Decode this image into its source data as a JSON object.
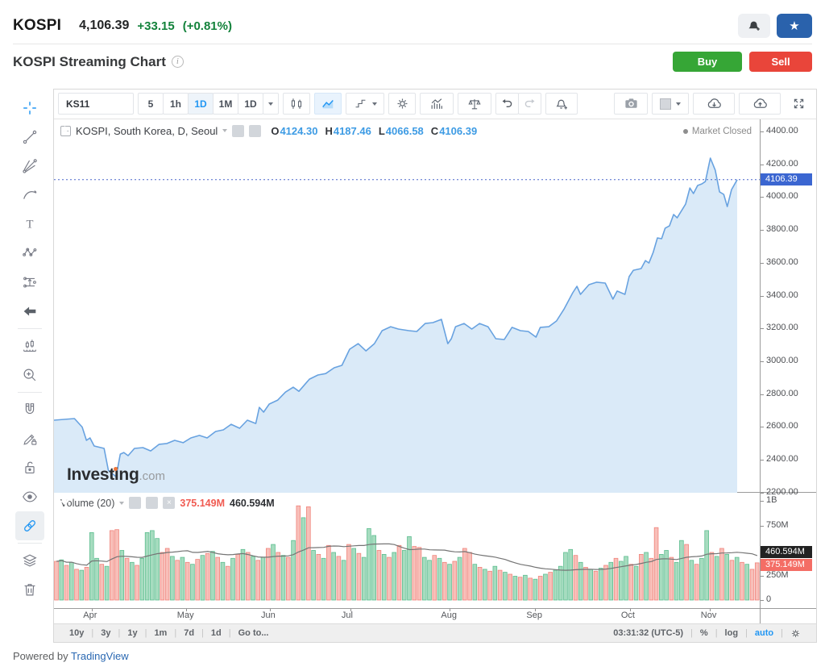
{
  "header": {
    "symbol": "KOSPI",
    "price": "4,106.39",
    "change": "+33.15",
    "change_pct": "(+0.81%)",
    "subtitle": "KOSPI Streaming Chart",
    "buy_label": "Buy",
    "sell_label": "Sell"
  },
  "toolbar": {
    "symbol_input": "KS11",
    "intervals": [
      "5",
      "1h",
      "1D",
      "1M",
      "1D"
    ],
    "active_interval": "1D"
  },
  "legend": {
    "main": "KOSPI, South Korea, D, Seoul",
    "ohlc_labels": {
      "o": "O",
      "h": "H",
      "l": "L",
      "c": "C"
    },
    "ohlc_values": {
      "o": "4124.30",
      "h": "4187.46",
      "l": "4066.58",
      "c": "4106.39"
    },
    "market_status": "Market Closed",
    "volume_label": "Volume (20)",
    "volume_value": "375.149M",
    "volume_ma": "460.594M"
  },
  "watermark": {
    "bold": "Investing",
    "rest": ".com"
  },
  "bottom_bar": {
    "ranges": [
      "10y",
      "3y",
      "1y",
      "1m",
      "7d",
      "1d",
      "Go to..."
    ],
    "clock": "03:31:32 (UTC-5)",
    "percent": "%",
    "log": "log",
    "auto": "auto"
  },
  "footer": {
    "powered_by": "Powered by",
    "link": "TradingView"
  },
  "colors": {
    "accent_blue": "#2196f3",
    "line_blue": "#68a2e0",
    "area_fill": "#daeaf8",
    "dotted_line": "#4a66cc",
    "price_badge": "#3b66d1",
    "vol_up_fill": "#a6dcbf",
    "vol_up_stroke": "#5cbd8f",
    "vol_down_fill": "#f8bfb9",
    "vol_down_stroke": "#f0837a",
    "ma_gray": "#757575",
    "badge_black": "#222222",
    "badge_red": "#f46d65"
  },
  "chart_data": {
    "type": "area",
    "title": "KOSPI, South Korea, D, Seoul",
    "series_name": "KOSPI",
    "current_price": 4106.39,
    "current_price_label": "4106.39",
    "ohlc": {
      "open": 4124.3,
      "high": 4187.46,
      "low": 4066.58,
      "close": 4106.39
    },
    "y_axis": {
      "min": 2200,
      "max": 4400,
      "ticks": [
        {
          "label": "4400.00",
          "v": 4400
        },
        {
          "label": "4200.00",
          "v": 4200
        },
        {
          "label": "4000.00",
          "v": 4000
        },
        {
          "label": "3800.00",
          "v": 3800
        },
        {
          "label": "3600.00",
          "v": 3600
        },
        {
          "label": "3400.00",
          "v": 3400
        },
        {
          "label": "3200.00",
          "v": 3200
        },
        {
          "label": "3000.00",
          "v": 3000
        },
        {
          "label": "2800.00",
          "v": 2800
        },
        {
          "label": "2600.00",
          "v": 2600
        },
        {
          "label": "2400.00",
          "v": 2400
        },
        {
          "label": "2200.00",
          "v": 2200
        }
      ]
    },
    "x_axis": {
      "labels": [
        "Apr",
        "May",
        "Jun",
        "Jul",
        "Aug",
        "Sep",
        "Oct",
        "Nov"
      ],
      "positions": [
        0.054,
        0.187,
        0.306,
        0.42,
        0.561,
        0.682,
        0.816,
        0.929
      ]
    },
    "price_line": {
      "x": [
        0,
        0.029,
        0.04,
        0.046,
        0.051,
        0.057,
        0.071,
        0.077,
        0.088,
        0.094,
        0.099,
        0.105,
        0.114,
        0.126,
        0.137,
        0.149,
        0.16,
        0.171,
        0.183,
        0.194,
        0.206,
        0.217,
        0.229,
        0.24,
        0.251,
        0.263,
        0.274,
        0.286,
        0.291,
        0.297,
        0.305,
        0.317,
        0.328,
        0.339,
        0.347,
        0.362,
        0.374,
        0.385,
        0.397,
        0.408,
        0.419,
        0.431,
        0.442,
        0.454,
        0.465,
        0.477,
        0.488,
        0.503,
        0.514,
        0.526,
        0.537,
        0.549,
        0.558,
        0.563,
        0.569,
        0.581,
        0.592,
        0.603,
        0.615,
        0.626,
        0.638,
        0.649,
        0.661,
        0.672,
        0.683,
        0.689,
        0.701,
        0.712,
        0.723,
        0.735,
        0.741,
        0.746,
        0.758,
        0.769,
        0.781,
        0.792,
        0.798,
        0.809,
        0.815,
        0.821,
        0.832,
        0.838,
        0.843,
        0.849,
        0.855,
        0.861,
        0.866,
        0.872,
        0.878,
        0.883,
        0.895,
        0.901,
        0.906,
        0.912,
        0.918,
        0.923,
        0.93,
        0.937,
        0.943,
        0.949,
        0.954,
        0.96,
        0.968
      ],
      "p": [
        2642,
        2652,
        2600,
        2519,
        2534,
        2485,
        2470,
        2337,
        2298,
        2435,
        2445,
        2426,
        2470,
        2475,
        2455,
        2495,
        2500,
        2519,
        2505,
        2534,
        2549,
        2534,
        2573,
        2583,
        2617,
        2593,
        2642,
        2622,
        2720,
        2691,
        2740,
        2764,
        2813,
        2843,
        2818,
        2892,
        2917,
        2926,
        2961,
        2976,
        3074,
        3108,
        3064,
        3108,
        3187,
        3211,
        3197,
        3187,
        3182,
        3231,
        3236,
        3256,
        3108,
        3138,
        3211,
        3231,
        3197,
        3231,
        3211,
        3138,
        3133,
        3207,
        3187,
        3182,
        3148,
        3207,
        3211,
        3246,
        3320,
        3418,
        3457,
        3408,
        3467,
        3482,
        3477,
        3379,
        3428,
        3408,
        3516,
        3555,
        3565,
        3614,
        3599,
        3663,
        3752,
        3747,
        3811,
        3825,
        3894,
        3874,
        3958,
        4056,
        4022,
        4071,
        4081,
        4095,
        4238,
        4164,
        4032,
        4017,
        3943,
        4046,
        4106.39
      ]
    },
    "volume": {
      "ma_period": 20,
      "last_value_label": "375.149M",
      "ma_value_label": "460.594M",
      "axis_ticks": [
        {
          "label": "1B",
          "v": 1000
        },
        {
          "label": "750M",
          "v": 750
        },
        {
          "label": "250M",
          "v": 250
        },
        {
          "label": "0",
          "v": 0
        }
      ],
      "values_m": [
        390,
        405,
        350,
        380,
        310,
        300,
        330,
        680,
        420,
        360,
        340,
        700,
        710,
        500,
        420,
        380,
        350,
        420,
        680,
        700,
        620,
        480,
        520,
        440,
        400,
        430,
        380,
        360,
        410,
        450,
        470,
        490,
        430,
        380,
        340,
        420,
        460,
        510,
        480,
        440,
        400,
        430,
        520,
        560,
        480,
        450,
        430,
        600,
        950,
        830,
        940,
        500,
        460,
        420,
        550,
        480,
        440,
        400,
        560,
        520,
        470,
        430,
        720,
        650,
        500,
        460,
        430,
        480,
        550,
        500,
        640,
        540,
        530,
        430,
        400,
        450,
        420,
        380,
        360,
        390,
        430,
        520,
        480,
        360,
        330,
        310,
        290,
        340,
        300,
        280,
        260,
        240,
        230,
        250,
        220,
        210,
        240,
        260,
        280,
        300,
        340,
        480,
        510,
        450,
        380,
        330,
        310,
        290,
        320,
        350,
        380,
        420,
        390,
        440,
        360,
        340,
        460,
        480,
        420,
        730,
        460,
        500,
        430,
        380,
        600,
        560,
        400,
        360,
        420,
        700,
        480,
        440,
        520,
        460,
        400,
        430,
        380,
        360,
        310,
        375
      ],
      "up": [
        0,
        1,
        0,
        1,
        0,
        1,
        0,
        1,
        1,
        0,
        1,
        0,
        0,
        1,
        0,
        1,
        0,
        1,
        1,
        1,
        1,
        0,
        0,
        1,
        0,
        1,
        0,
        1,
        0,
        1,
        0,
        1,
        0,
        1,
        0,
        1,
        0,
        1,
        0,
        1,
        0,
        1,
        0,
        1,
        0,
        1,
        0,
        1,
        0,
        1,
        0,
        1,
        0,
        1,
        0,
        1,
        0,
        1,
        0,
        1,
        0,
        1,
        1,
        1,
        0,
        1,
        0,
        1,
        0,
        1,
        1,
        0,
        0,
        1,
        1,
        0,
        1,
        0,
        1,
        0,
        1,
        0,
        0,
        1,
        0,
        1,
        0,
        1,
        0,
        1,
        0,
        1,
        0,
        1,
        0,
        1,
        0,
        1,
        0,
        1,
        1,
        1,
        1,
        0,
        1,
        0,
        1,
        0,
        1,
        0,
        1,
        0,
        1,
        1,
        0,
        1,
        0,
        1,
        0,
        0,
        1,
        1,
        0,
        1,
        1,
        0,
        1,
        0,
        1,
        1,
        0,
        1,
        0,
        1,
        0,
        1,
        0,
        1,
        0,
        0
      ]
    }
  }
}
